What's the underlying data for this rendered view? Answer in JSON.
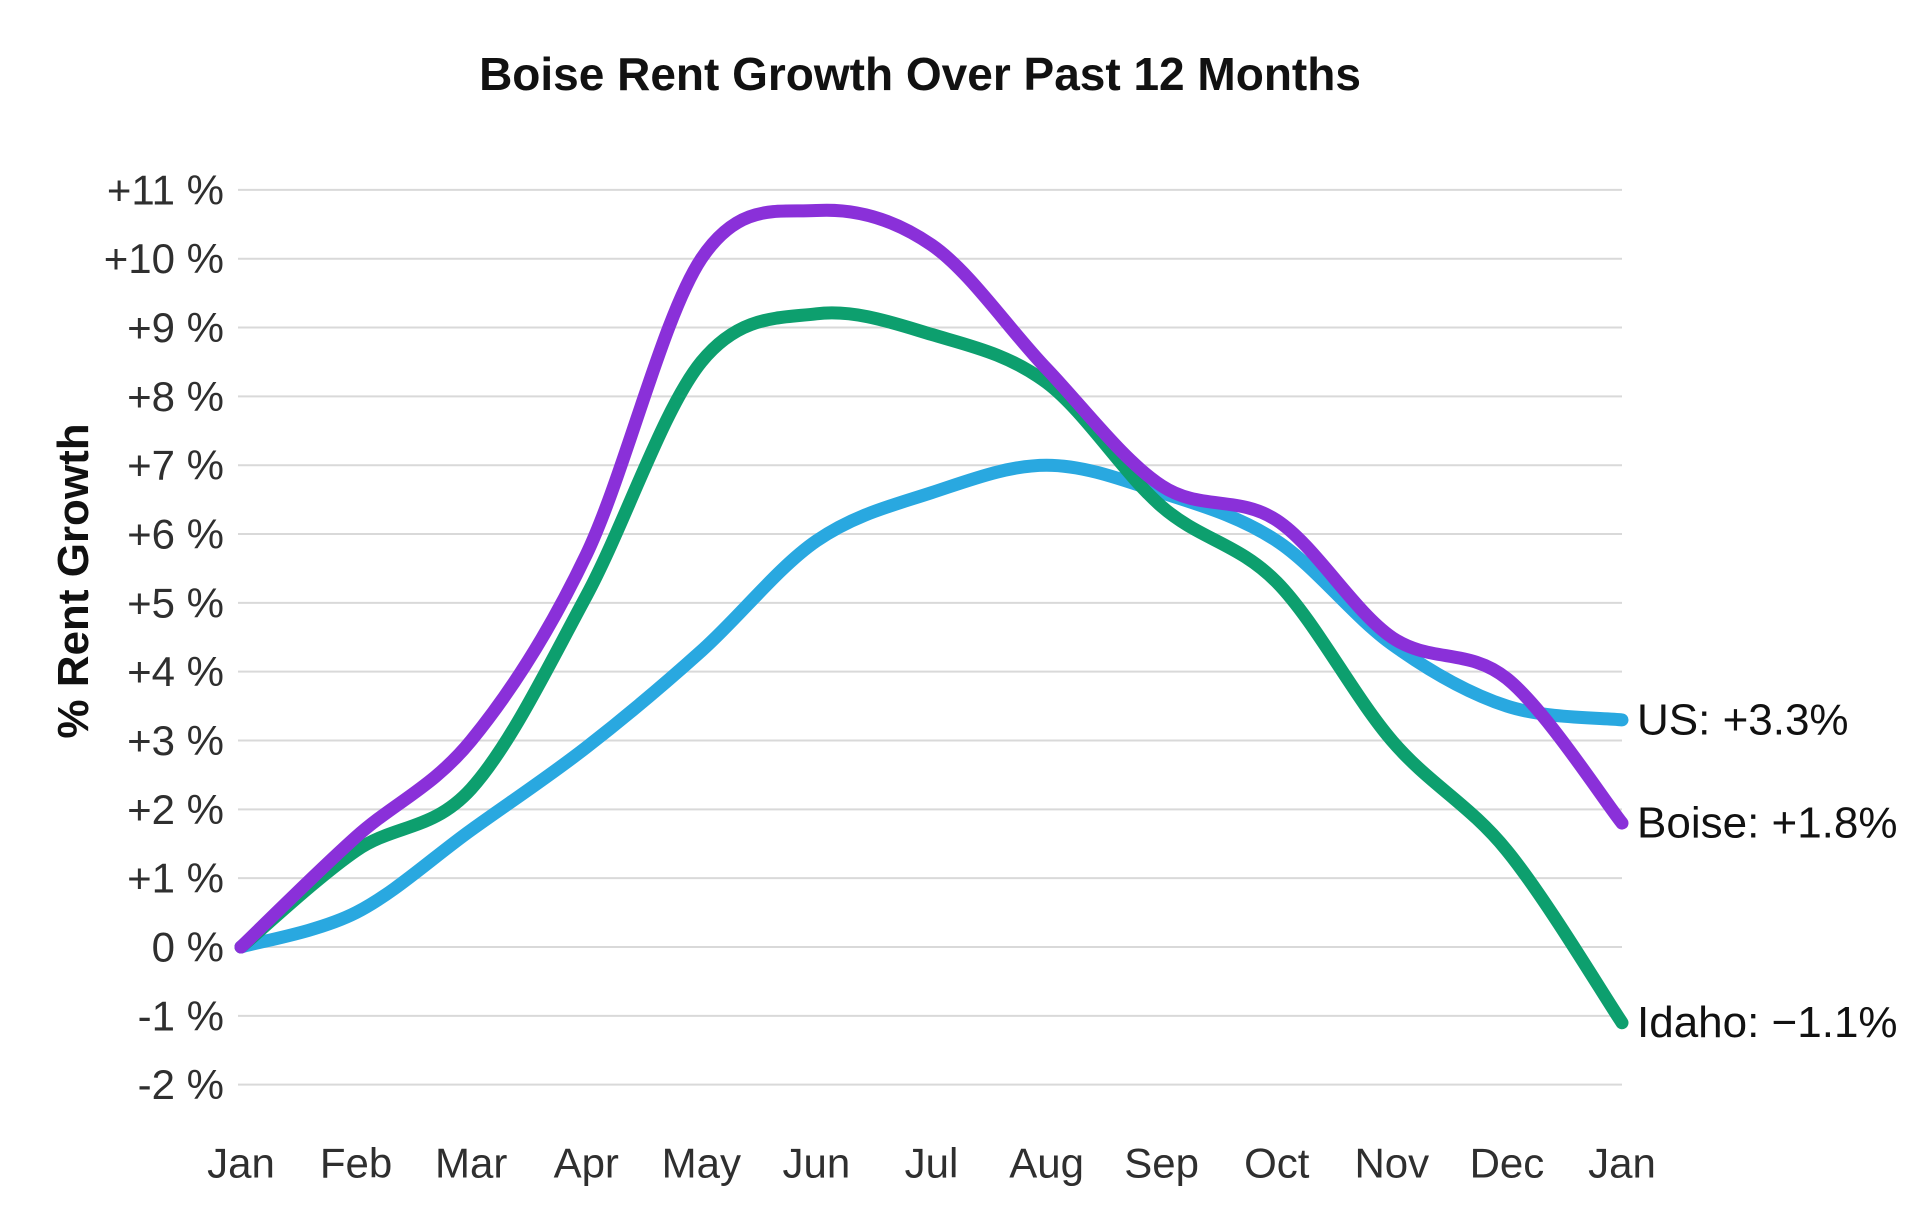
{
  "title": "Boise Rent Growth Over Past 12 Months",
  "y_axis_title": "% Rent Growth",
  "chart_data": {
    "type": "line",
    "title": "Boise Rent Growth Over Past 12 Months",
    "xlabel": "",
    "ylabel": "% Rent Growth",
    "ylim": [
      -2,
      11
    ],
    "grid": true,
    "grid_color": "#d9d9d9",
    "tick_text_color": "#2f2f2f",
    "label_text_color": "#111111",
    "legend_position": "end-of-line-labels-right",
    "categories": [
      "Jan",
      "Feb",
      "Mar",
      "Apr",
      "May",
      "Jun",
      "Jul",
      "Aug",
      "Sep",
      "Oct",
      "Nov",
      "Dec",
      "Jan"
    ],
    "y_ticks": [
      {
        "label": "+11 %",
        "value": 11
      },
      {
        "label": "+10 %",
        "value": 10
      },
      {
        "label": "+9 %",
        "value": 9
      },
      {
        "label": "+8 %",
        "value": 8
      },
      {
        "label": "+7 %",
        "value": 7
      },
      {
        "label": "+6 %",
        "value": 6
      },
      {
        "label": "+5 %",
        "value": 5
      },
      {
        "label": "+4 %",
        "value": 4
      },
      {
        "label": "+3 %",
        "value": 3
      },
      {
        "label": "+2 %",
        "value": 2
      },
      {
        "label": "+1 %",
        "value": 1
      },
      {
        "label": "0 %",
        "value": 0
      },
      {
        "label": "-1 %",
        "value": -1
      },
      {
        "label": "-2 %",
        "value": -2
      }
    ],
    "series": [
      {
        "name": "US",
        "color": "#29a8e0",
        "end_label": "US: +3.3%",
        "final_value_text": "+3.3%",
        "values": [
          0,
          0.5,
          1.7,
          2.9,
          4.3,
          5.9,
          6.6,
          7.0,
          6.6,
          5.9,
          4.4,
          3.5,
          3.3
        ]
      },
      {
        "name": "Idaho",
        "color": "#0d9f6e",
        "end_label": "Idaho: −1.1%",
        "final_value_text": "−1.1%",
        "values": [
          0,
          1.4,
          2.3,
          5.1,
          8.5,
          9.2,
          8.9,
          8.2,
          6.4,
          5.3,
          3.0,
          1.4,
          -1.1
        ]
      },
      {
        "name": "Boise",
        "color": "#8a30d9",
        "end_label": "Boise: +1.8%",
        "final_value_text": "+1.8%",
        "values": [
          0,
          1.6,
          3.0,
          5.7,
          10.0,
          10.7,
          10.2,
          8.4,
          6.7,
          6.2,
          4.5,
          3.9,
          1.8
        ]
      }
    ]
  }
}
